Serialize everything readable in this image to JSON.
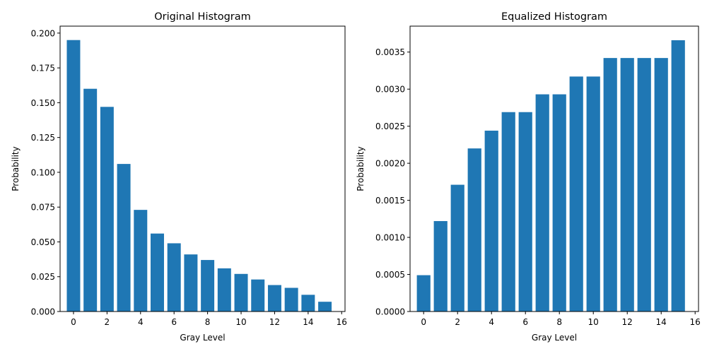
{
  "chart_data": [
    {
      "type": "bar",
      "title": "Original Histogram",
      "xlabel": "Gray Level",
      "ylabel": "Probability",
      "categories": [
        0,
        1,
        2,
        3,
        4,
        5,
        6,
        7,
        8,
        9,
        10,
        11,
        12,
        13,
        14,
        15
      ],
      "values": [
        0.195,
        0.16,
        0.147,
        0.106,
        0.073,
        0.056,
        0.049,
        0.041,
        0.037,
        0.031,
        0.027,
        0.023,
        0.019,
        0.017,
        0.012,
        0.007
      ],
      "xlim": [
        -0.8,
        16.2
      ],
      "ylim": [
        0,
        0.205
      ],
      "xticks": [
        0,
        2,
        4,
        6,
        8,
        10,
        12,
        14,
        16
      ],
      "xtick_labels": [
        "0",
        "2",
        "4",
        "6",
        "8",
        "10",
        "12",
        "14",
        "16"
      ],
      "yticks": [
        0,
        0.025,
        0.05,
        0.075,
        0.1,
        0.125,
        0.15,
        0.175,
        0.2
      ],
      "ytick_labels": [
        "0.000",
        "0.025",
        "0.050",
        "0.075",
        "0.100",
        "0.125",
        "0.150",
        "0.175",
        "0.200"
      ],
      "grid": false,
      "bar_color": "#1f77b4"
    },
    {
      "type": "bar",
      "title": "Equalized Histogram",
      "xlabel": "Gray Level",
      "ylabel": "Probability",
      "categories": [
        0,
        1,
        2,
        3,
        4,
        5,
        6,
        7,
        8,
        9,
        10,
        11,
        12,
        13,
        14,
        15
      ],
      "values": [
        0.00049,
        0.00122,
        0.00171,
        0.0022,
        0.00244,
        0.00269,
        0.00269,
        0.00293,
        0.00293,
        0.00317,
        0.00317,
        0.00342,
        0.00342,
        0.00342,
        0.00342,
        0.00366
      ],
      "xlim": [
        -0.8,
        16.2
      ],
      "ylim": [
        0,
        0.00385
      ],
      "xticks": [
        0,
        2,
        4,
        6,
        8,
        10,
        12,
        14,
        16
      ],
      "xtick_labels": [
        "0",
        "2",
        "4",
        "6",
        "8",
        "10",
        "12",
        "14",
        "16"
      ],
      "yticks": [
        0,
        0.0005,
        0.001,
        0.0015,
        0.002,
        0.0025,
        0.003,
        0.0035
      ],
      "ytick_labels": [
        "0.0000",
        "0.0005",
        "0.0010",
        "0.0015",
        "0.0020",
        "0.0025",
        "0.0030",
        "0.0035"
      ],
      "grid": false,
      "bar_color": "#1f77b4"
    }
  ]
}
